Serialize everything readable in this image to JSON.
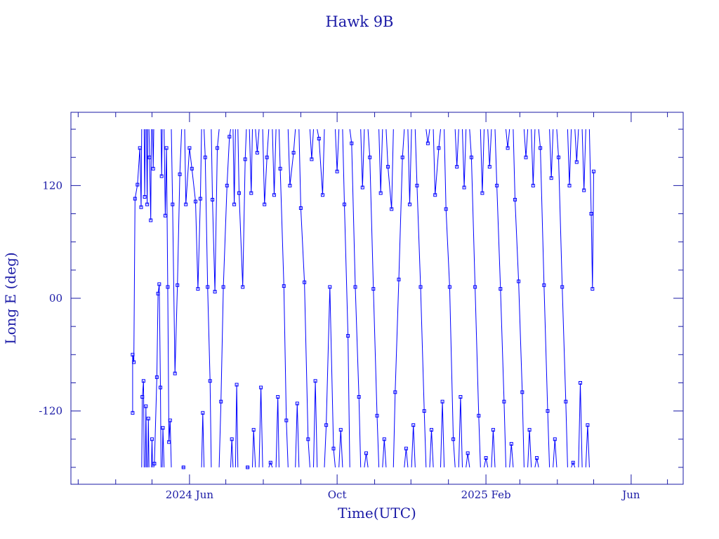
{
  "chart_data": {
    "type": "line",
    "title": "Hawk 9B",
    "xlabel": "Time(UTC)",
    "ylabel": "Long E (deg)",
    "x_type": "date",
    "xlim": [
      "2024-02-24",
      "2025-07-14"
    ],
    "ylim": [
      -198,
      198
    ],
    "y_ticks": [
      {
        "value": -120,
        "label": "-120"
      },
      {
        "value": 0,
        "label": "00"
      },
      {
        "value": 120,
        "label": "120"
      }
    ],
    "x_ticks": [
      {
        "date": "2024-06-01",
        "label": "2024 Jun"
      },
      {
        "date": "2024-10-01",
        "label": "Oct"
      },
      {
        "date": "2025-02-01",
        "label": "2025 Feb"
      },
      {
        "date": "2025-06-01",
        "label": "Jun"
      }
    ],
    "grid": false,
    "series": [
      {
        "color": "#0000ff",
        "marker": "square",
        "wraps_at": [
          -180,
          180
        ],
        "points": [
          [
            "2024-04-15",
            -122
          ],
          [
            "2024-04-15",
            -60
          ],
          [
            "2024-04-16",
            -68
          ],
          [
            "2024-04-17",
            106
          ],
          [
            "2024-04-19",
            121
          ],
          [
            "2024-04-21",
            160
          ],
          [
            "2024-04-22",
            97
          ],
          [
            "2024-04-23",
            -105
          ],
          [
            "2024-04-24",
            -88
          ],
          [
            "2024-04-25",
            108
          ],
          [
            "2024-04-26",
            -115
          ],
          [
            "2024-04-27",
            100
          ],
          [
            "2024-04-28",
            -128
          ],
          [
            "2024-04-29",
            150
          ],
          [
            "2024-04-30",
            83
          ],
          [
            "2024-05-01",
            -150
          ],
          [
            "2024-05-02",
            138
          ],
          [
            "2024-05-03",
            -176
          ],
          [
            "2024-05-05",
            -84
          ],
          [
            "2024-05-06",
            5
          ],
          [
            "2024-05-07",
            15
          ],
          [
            "2024-05-08",
            -95
          ],
          [
            "2024-05-09",
            130
          ],
          [
            "2024-05-10",
            -138
          ],
          [
            "2024-05-12",
            88
          ],
          [
            "2024-05-13",
            160
          ],
          [
            "2024-05-14",
            12
          ],
          [
            "2024-05-15",
            -153
          ],
          [
            "2024-05-16",
            -130
          ],
          [
            "2024-05-18",
            100
          ],
          [
            "2024-05-20",
            -80
          ],
          [
            "2024-05-22",
            14
          ],
          [
            "2024-05-24",
            132
          ],
          [
            "2024-05-27",
            -180
          ],
          [
            "2024-05-29",
            100
          ],
          [
            "2024-06-01",
            160
          ],
          [
            "2024-06-03",
            138
          ],
          [
            "2024-06-06",
            103
          ],
          [
            "2024-06-08",
            10
          ],
          [
            "2024-06-10",
            106
          ],
          [
            "2024-06-12",
            -122
          ],
          [
            "2024-06-14",
            150
          ],
          [
            "2024-06-16",
            12
          ],
          [
            "2024-06-18",
            -88
          ],
          [
            "2024-06-20",
            105
          ],
          [
            "2024-06-22",
            7
          ],
          [
            "2024-06-24",
            160
          ],
          [
            "2024-06-27",
            -110
          ],
          [
            "2024-06-29",
            12
          ],
          [
            "2024-07-02",
            120
          ],
          [
            "2024-07-04",
            172
          ],
          [
            "2024-07-06",
            -150
          ],
          [
            "2024-07-08",
            100
          ],
          [
            "2024-07-10",
            -92
          ],
          [
            "2024-07-12",
            112
          ],
          [
            "2024-07-15",
            12
          ],
          [
            "2024-07-17",
            148
          ],
          [
            "2024-07-19",
            -180
          ],
          [
            "2024-07-22",
            112
          ],
          [
            "2024-07-24",
            -140
          ],
          [
            "2024-07-27",
            155
          ],
          [
            "2024-07-30",
            -95
          ],
          [
            "2024-08-02",
            100
          ],
          [
            "2024-08-04",
            150
          ],
          [
            "2024-08-07",
            -175
          ],
          [
            "2024-08-10",
            110
          ],
          [
            "2024-08-13",
            -105
          ],
          [
            "2024-08-15",
            138
          ],
          [
            "2024-08-18",
            13
          ],
          [
            "2024-08-20",
            -130
          ],
          [
            "2024-08-23",
            120
          ],
          [
            "2024-08-26",
            155
          ],
          [
            "2024-08-29",
            -112
          ],
          [
            "2024-09-01",
            96
          ],
          [
            "2024-09-04",
            17
          ],
          [
            "2024-09-07",
            -150
          ],
          [
            "2024-09-10",
            148
          ],
          [
            "2024-09-13",
            -88
          ],
          [
            "2024-09-16",
            170
          ],
          [
            "2024-09-19",
            110
          ],
          [
            "2024-09-22",
            -135
          ],
          [
            "2024-09-25",
            12
          ],
          [
            "2024-09-28",
            -160
          ],
          [
            "2024-10-01",
            135
          ],
          [
            "2024-10-04",
            -140
          ],
          [
            "2024-10-07",
            100
          ],
          [
            "2024-10-10",
            -40
          ],
          [
            "2024-10-13",
            165
          ],
          [
            "2024-10-16",
            12
          ],
          [
            "2024-10-19",
            -105
          ],
          [
            "2024-10-22",
            118
          ],
          [
            "2024-10-25",
            -165
          ],
          [
            "2024-10-28",
            150
          ],
          [
            "2024-10-31",
            10
          ],
          [
            "2024-11-03",
            -125
          ],
          [
            "2024-11-06",
            112
          ],
          [
            "2024-11-09",
            -150
          ],
          [
            "2024-11-12",
            140
          ],
          [
            "2024-11-15",
            95
          ],
          [
            "2024-11-18",
            -100
          ],
          [
            "2024-11-21",
            20
          ],
          [
            "2024-11-24",
            150
          ],
          [
            "2024-11-27",
            -160
          ],
          [
            "2024-11-30",
            100
          ],
          [
            "2024-12-03",
            -135
          ],
          [
            "2024-12-06",
            120
          ],
          [
            "2024-12-09",
            12
          ],
          [
            "2024-12-12",
            -120
          ],
          [
            "2024-12-15",
            165
          ],
          [
            "2024-12-18",
            -140
          ],
          [
            "2024-12-21",
            110
          ],
          [
            "2024-12-24",
            160
          ],
          [
            "2024-12-27",
            -110
          ],
          [
            "2024-12-30",
            95
          ],
          [
            "2025-01-02",
            12
          ],
          [
            "2025-01-05",
            -150
          ],
          [
            "2025-01-08",
            140
          ],
          [
            "2025-01-11",
            -105
          ],
          [
            "2025-01-14",
            118
          ],
          [
            "2025-01-17",
            -165
          ],
          [
            "2025-01-20",
            150
          ],
          [
            "2025-01-23",
            12
          ],
          [
            "2025-01-26",
            -125
          ],
          [
            "2025-01-29",
            112
          ],
          [
            "2025-02-01",
            -170
          ],
          [
            "2025-02-04",
            140
          ],
          [
            "2025-02-07",
            -140
          ],
          [
            "2025-02-10",
            120
          ],
          [
            "2025-02-13",
            10
          ],
          [
            "2025-02-16",
            -110
          ],
          [
            "2025-02-19",
            160
          ],
          [
            "2025-02-22",
            -155
          ],
          [
            "2025-02-25",
            105
          ],
          [
            "2025-02-28",
            18
          ],
          [
            "2025-03-03",
            -100
          ],
          [
            "2025-03-06",
            150
          ],
          [
            "2025-03-09",
            -140
          ],
          [
            "2025-03-12",
            120
          ],
          [
            "2025-03-15",
            -170
          ],
          [
            "2025-03-18",
            160
          ],
          [
            "2025-03-21",
            14
          ],
          [
            "2025-03-24",
            -120
          ],
          [
            "2025-03-27",
            128
          ],
          [
            "2025-03-30",
            -150
          ],
          [
            "2025-04-02",
            150
          ],
          [
            "2025-04-05",
            12
          ],
          [
            "2025-04-08",
            -110
          ],
          [
            "2025-04-11",
            120
          ],
          [
            "2025-04-14",
            -175
          ],
          [
            "2025-04-17",
            145
          ],
          [
            "2025-04-20",
            -90
          ],
          [
            "2025-04-23",
            115
          ],
          [
            "2025-04-26",
            -135
          ],
          [
            "2025-04-29",
            90
          ],
          [
            "2025-04-30",
            10
          ],
          [
            "2025-05-01",
            135
          ]
        ]
      }
    ]
  }
}
